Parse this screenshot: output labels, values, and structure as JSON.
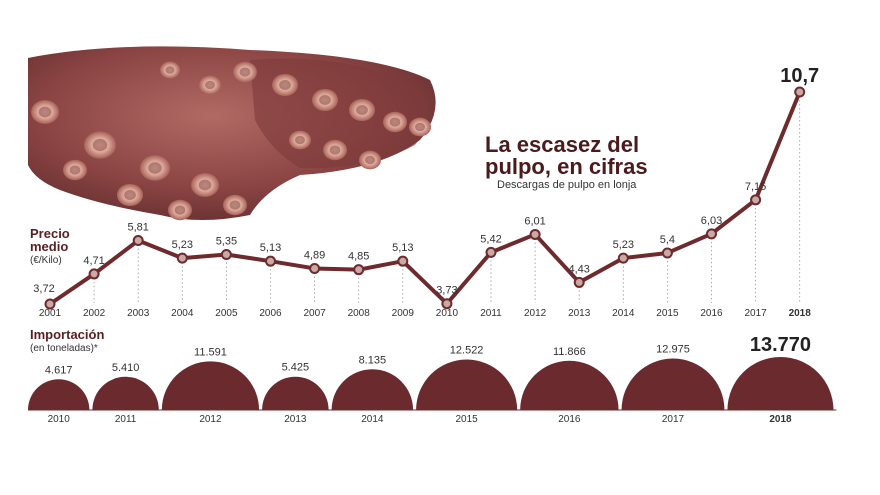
{
  "title_line1": "La escasez del",
  "title_line2": "pulpo, en cifras",
  "subtitle": "Descargas de pulpo en lonja",
  "price_label_line1": "Precio",
  "price_label_line2": "medio",
  "price_unit": "(€/Kilo)",
  "import_label": "Importación",
  "import_unit": "(en toneladas)*",
  "colors": {
    "brand": "#5a1f22",
    "line": "#6e2a2d",
    "circle": "#6b2a2e",
    "text": "#333333"
  },
  "image": "octopus-tentacles-photo",
  "chart_data": [
    {
      "type": "line",
      "x": [
        "2001",
        "2002",
        "2003",
        "2004",
        "2005",
        "2006",
        "2007",
        "2008",
        "2009",
        "2010",
        "2011",
        "2012",
        "2013",
        "2014",
        "2015",
        "2016",
        "2017",
        "2018"
      ],
      "values": [
        3.72,
        4.71,
        5.81,
        5.23,
        5.35,
        5.13,
        4.89,
        4.85,
        5.13,
        3.73,
        5.42,
        6.01,
        4.43,
        5.23,
        5.4,
        6.03,
        7.15,
        10.7
      ],
      "value_labels": [
        "3,72",
        "4,71",
        "5,81",
        "5,23",
        "5,35",
        "5,13",
        "4,89",
        "4,85",
        "5,13",
        "3,73",
        "5,42",
        "6,01",
        "4,43",
        "5,23",
        "5,4",
        "6,03",
        "7,15",
        "10,7"
      ],
      "ylabel": "Precio medio (€/Kilo)"
    },
    {
      "type": "bar",
      "categories": [
        "2010",
        "2011",
        "2012",
        "2013",
        "2014",
        "2015",
        "2016",
        "2017",
        "2018"
      ],
      "values": [
        4617,
        5410,
        11591,
        5425,
        8135,
        12522,
        11866,
        12975,
        13770
      ],
      "value_labels": [
        "4.617",
        "5.410",
        "11.591",
        "5.425",
        "8.135",
        "12.522",
        "11.866",
        "12.975",
        "13.770"
      ],
      "ylabel": "Importación (en toneladas)*"
    }
  ]
}
